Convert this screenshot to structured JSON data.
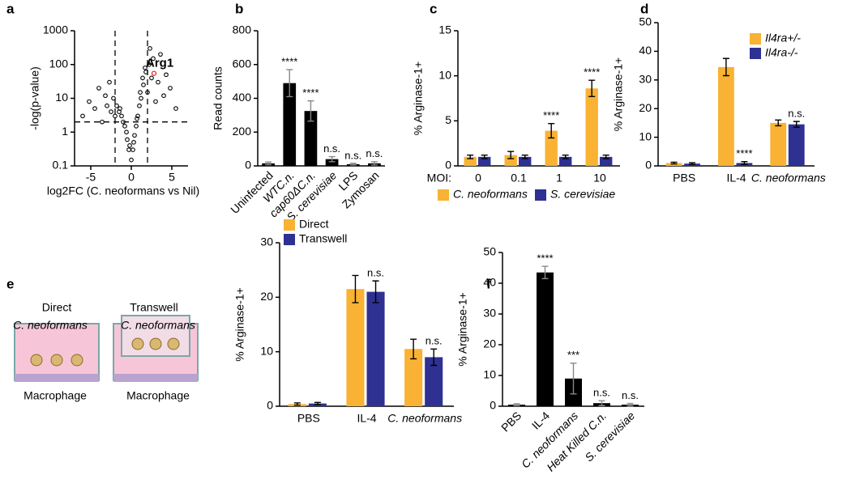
{
  "chart_data": [
    {
      "type": "scatter",
      "panel_label": "a",
      "xlabel": "log2FC (C. neoformans vs Nil)",
      "ylabel": "-log(p-value)",
      "log_y": true,
      "x": [
        -6,
        -5.2,
        -4.5,
        -4,
        -3.6,
        -3.2,
        -3,
        -2.7,
        -2.5,
        -2.2,
        -2,
        -1.8,
        -1.5,
        -1.2,
        -1,
        -0.8,
        -0.5,
        -0.3,
        0,
        0.2,
        0.4,
        0.6,
        0.8,
        1,
        1.2,
        1.5,
        1.8,
        2,
        2.2,
        2.5,
        2.7,
        3,
        3.3,
        3.6,
        4,
        4.3,
        4.8,
        5.5,
        -0.6,
        0.7,
        1.4,
        -1.4,
        0.3,
        -0.2,
        1.1,
        1.7,
        2.3
      ],
      "y": [
        3,
        8,
        5,
        20,
        2,
        12,
        6,
        30,
        4,
        10,
        3,
        6,
        4,
        3,
        2,
        1.5,
        0.6,
        0.3,
        0.15,
        0.3,
        0.8,
        1.5,
        3,
        6,
        10,
        25,
        60,
        15,
        100,
        40,
        150,
        8,
        30,
        200,
        12,
        50,
        20,
        5,
        1,
        2.5,
        40,
        5,
        0.5,
        0.4,
        15,
        80,
        300
      ],
      "color": "#000000",
      "threshold_x": [
        -2,
        2
      ],
      "threshold_y": 2,
      "highlight": {
        "label": "Arg1",
        "x": 2.8,
        "y": 55,
        "color": "#e0302a"
      },
      "xlim": [
        -7,
        7
      ],
      "xticks": [
        -5,
        0,
        5
      ],
      "ylim": [
        0.1,
        1000
      ],
      "yticks": [
        0.1,
        1,
        10,
        100,
        1000
      ]
    },
    {
      "type": "bar",
      "panel_label": "b",
      "ylabel": "Read counts",
      "categories": [
        "Uninfected",
        "WTC.n.",
        "cap60ΔC.n.",
        "S. cerevisiae",
        "LPS",
        "Zymosan"
      ],
      "values": [
        15,
        490,
        325,
        40,
        10,
        15
      ],
      "errors": [
        8,
        80,
        60,
        15,
        5,
        10
      ],
      "annotations": [
        null,
        "****",
        "****",
        "n.s.",
        "n.s.",
        "n.s."
      ],
      "color": "#000000",
      "ylim": [
        0,
        800
      ],
      "yticks": [
        0,
        200,
        400,
        600,
        800
      ]
    },
    {
      "type": "bar",
      "panel_label": "c",
      "ylabel": "% Arginase-1+",
      "xlabel": "MOI:",
      "legend": "bottom",
      "categories": [
        "0",
        "0.1",
        "1",
        "10"
      ],
      "series": [
        {
          "name": "C. neoformans",
          "color": "#f9b233",
          "values": [
            1,
            1.2,
            3.9,
            8.6
          ],
          "errors": [
            0.2,
            0.4,
            0.8,
            0.9
          ],
          "annotations": [
            null,
            null,
            "****",
            "****"
          ]
        },
        {
          "name": "S. cerevisiae",
          "color": "#2e3192",
          "values": [
            1,
            1,
            1,
            1
          ],
          "errors": [
            0.2,
            0.2,
            0.2,
            0.2
          ]
        }
      ],
      "ylim": [
        0,
        15
      ],
      "yticks": [
        0,
        5,
        10,
        15
      ]
    },
    {
      "type": "bar",
      "panel_label": "d",
      "ylabel": "% Arginase-1+",
      "legend": "top-right",
      "categories": [
        "PBS",
        "IL-4",
        "C. neoformans"
      ],
      "series": [
        {
          "name": "Il4ra+/-",
          "color": "#f9b233",
          "values": [
            1,
            34.5,
            15
          ],
          "errors": [
            0.3,
            3,
            1
          ]
        },
        {
          "name": "Il4ra-/-",
          "color": "#2e3192",
          "values": [
            0.8,
            1,
            14.5
          ],
          "errors": [
            0.3,
            0.5,
            1
          ],
          "annotations": [
            null,
            "****",
            "n.s."
          ]
        }
      ],
      "ylim": [
        0,
        50
      ],
      "yticks": [
        0,
        10,
        20,
        30,
        40,
        50
      ]
    },
    {
      "type": "bar",
      "panel_label": "e",
      "ylabel": "% Arginase-1+",
      "legend": "top-left",
      "categories": [
        "PBS",
        "IL-4",
        "C. neoformans"
      ],
      "series": [
        {
          "name": "Direct",
          "color": "#f9b233",
          "values": [
            0.4,
            21.5,
            10.5
          ],
          "errors": [
            0.2,
            2.5,
            1.8
          ]
        },
        {
          "name": "Transwell",
          "color": "#2e3192",
          "values": [
            0.5,
            21,
            9
          ],
          "errors": [
            0.2,
            2,
            1.5
          ],
          "annotations": [
            null,
            "n.s.",
            "n.s."
          ]
        }
      ],
      "ylim": [
        0,
        30
      ],
      "yticks": [
        0,
        10,
        20,
        30
      ]
    },
    {
      "type": "bar",
      "panel_label": "f",
      "ylabel": "% Arginase-1+",
      "categories": [
        "PBS",
        "IL-4",
        "C. neoformans",
        "Heat Killed C.n.",
        "S. cerevisiae"
      ],
      "values": [
        0.5,
        43.5,
        9,
        1,
        0.5
      ],
      "errors": [
        0.3,
        2,
        5,
        0.8,
        0.4
      ],
      "annotations": [
        null,
        "****",
        "***",
        "n.s.",
        "n.s."
      ],
      "color": "#000000",
      "ylim": [
        0,
        50
      ],
      "yticks": [
        0,
        10,
        20,
        30,
        40,
        50
      ]
    }
  ],
  "schematic": {
    "left_title": "Direct",
    "left_fungus": "C. neoformans",
    "left_cell": "Macrophage",
    "right_title": "Transwell",
    "right_fungus": "C. neoformans",
    "right_cell": "Macrophage"
  }
}
